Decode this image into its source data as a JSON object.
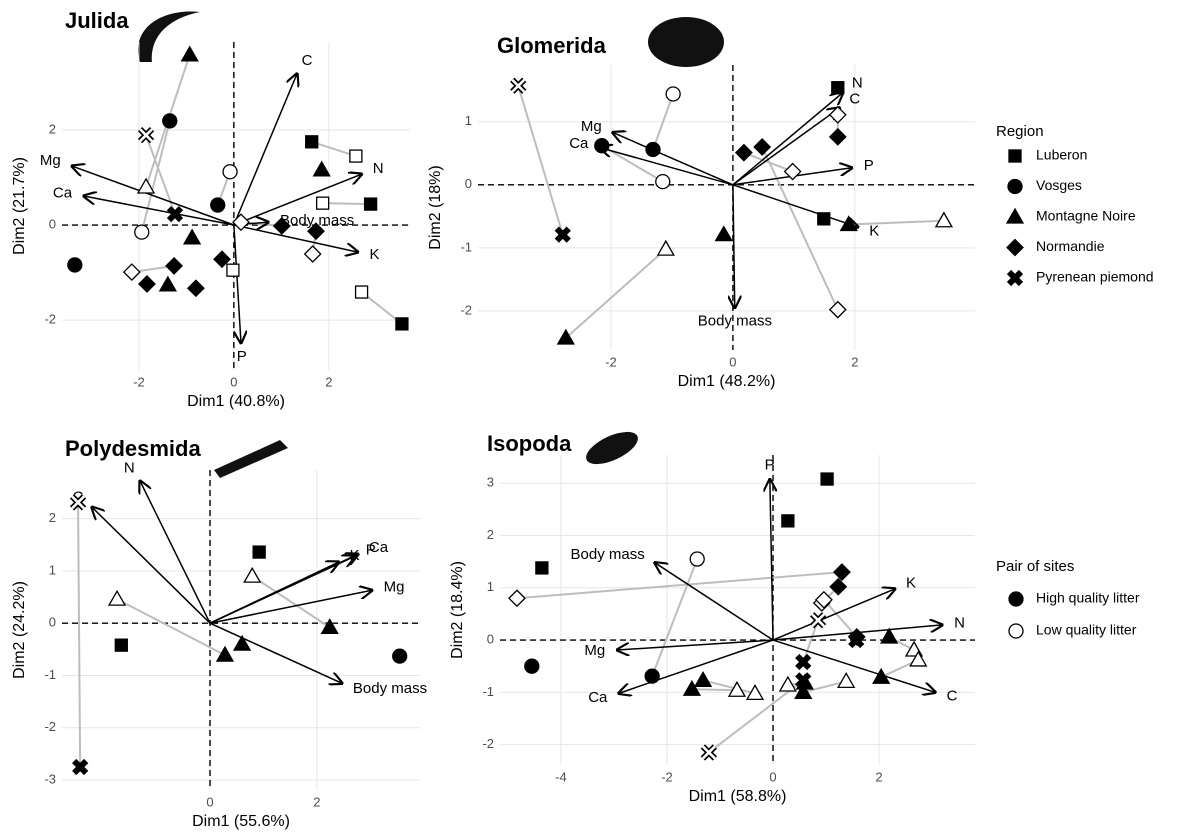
{
  "legend": {
    "region_title": "Region",
    "regions": [
      {
        "name": "Luberon",
        "marker": "square"
      },
      {
        "name": "Vosges",
        "marker": "circle"
      },
      {
        "name": "Montagne Noire",
        "marker": "triangle"
      },
      {
        "name": "Normandie",
        "marker": "diamond"
      },
      {
        "name": "Pyrenean piemond",
        "marker": "cross"
      }
    ],
    "pair_title": "Pair of sites",
    "pairs": [
      {
        "name": "High quality litter",
        "filled": true
      },
      {
        "name": "Low quality litter",
        "filled": false
      }
    ]
  },
  "chart_data": [
    {
      "type": "biplot",
      "title": "Julida",
      "xlabel": "Dim1 (40.8%)",
      "ylabel": "Dim2 (21.7%)",
      "grid": true,
      "xlim": [
        -3.62,
        3.71
      ],
      "ylim": [
        -3.05,
        3.85
      ],
      "xticks": [
        -2,
        0,
        2
      ],
      "yticks": [
        -2,
        0,
        2
      ],
      "series": [
        {
          "high": {
            "x": [
              1.64,
              2.88,
              3.54
            ],
            "y": [
              1.75,
              0.44,
              -2.08
            ]
          },
          "low": {
            "x": [
              2.57,
              1.87,
              2.69,
              -0.02
            ],
            "y": [
              1.45,
              0.46,
              -1.41,
              -0.95
            ]
          }
        },
        {
          "high": {
            "x": [
              -1.35,
              -0.34,
              -3.35
            ],
            "y": [
              2.19,
              0.42,
              -0.84
            ]
          },
          "low": {
            "x": [
              -1.94,
              -0.08
            ],
            "y": [
              -0.15,
              1.12
            ]
          }
        },
        {
          "high": {
            "x": [
              -0.93,
              1.85,
              -0.88,
              -1.39
            ],
            "y": [
              3.58,
              1.16,
              -0.27,
              -1.26
            ]
          },
          "low": {
            "x": [
              -1.85
            ],
            "y": [
              0.8
            ]
          }
        },
        {
          "high": {
            "x": [
              1.01,
              1.73,
              -1.26,
              -1.83,
              -0.8,
              -0.25
            ],
            "y": [
              -0.02,
              -0.13,
              -0.86,
              -1.24,
              -1.33,
              -0.72
            ]
          },
          "low": {
            "x": [
              0.15,
              1.66,
              -2.15
            ],
            "y": [
              0.06,
              -0.61,
              -0.99
            ]
          }
        },
        {
          "high": {
            "x": [
              -1.24
            ],
            "y": [
              0.23
            ]
          },
          "low": {
            "x": [
              -1.85
            ],
            "y": [
              1.89
            ]
          }
        }
      ],
      "arrows": [
        {
          "label": "C",
          "x": 1.33,
          "y": 3.18
        },
        {
          "label": "N",
          "x": 2.69,
          "y": 1.07
        },
        {
          "label": "Mg",
          "x": -3.41,
          "y": 1.24
        },
        {
          "label": "Ca",
          "x": -3.16,
          "y": 0.61
        },
        {
          "label": "K",
          "x": 2.61,
          "y": -0.57
        },
        {
          "label": "P",
          "x": 0.15,
          "y": -2.48
        },
        {
          "label": "Body mass",
          "x": 0.72,
          "y": 0.06
        }
      ]
    },
    {
      "type": "biplot",
      "title": "Glomerida",
      "xlabel": "Dim1 (48.2%)",
      "ylabel": "Dim2 (18%)",
      "grid": true,
      "xlim": [
        -4.18,
        3.97
      ],
      "ylim": [
        -2.62,
        1.9
      ],
      "xticks": [
        -2,
        0,
        2
      ],
      "yticks": [
        -2,
        -1,
        0,
        1
      ],
      "series": [
        {
          "high": {
            "x": [
              1.72,
              1.49
            ],
            "y": [
              1.54,
              -0.54
            ]
          },
          "low": {
            "x": [],
            "y": []
          }
        },
        {
          "high": {
            "x": [
              -1.31,
              -2.15
            ],
            "y": [
              0.56,
              0.62
            ]
          },
          "low": {
            "x": [
              -0.98,
              -1.15
            ],
            "y": [
              1.44,
              0.05
            ]
          }
        },
        {
          "high": {
            "x": [
              -2.74,
              1.9,
              -0.15
            ],
            "y": [
              -2.43,
              -0.63,
              -0.79
            ]
          },
          "low": {
            "x": [
              -1.1,
              3.46
            ],
            "y": [
              -1.02,
              -0.57
            ]
          }
        },
        {
          "high": {
            "x": [
              1.72,
              0.18,
              0.48
            ],
            "y": [
              0.76,
              0.51,
              0.6
            ]
          },
          "low": {
            "x": [
              1.72,
              0.98,
              1.72
            ],
            "y": [
              1.11,
              0.21,
              -1.98
            ]
          }
        },
        {
          "high": {
            "x": [
              -2.79
            ],
            "y": [
              -0.79
            ]
          },
          "low": {
            "x": [
              -3.52
            ],
            "y": [
              1.57
            ]
          }
        }
      ],
      "arrows": [
        {
          "label": "N",
          "x": 1.8,
          "y": 1.46
        },
        {
          "label": "C",
          "x": 1.75,
          "y": 1.22
        },
        {
          "label": "P",
          "x": 1.95,
          "y": 0.27
        },
        {
          "label": "K",
          "x": 2.05,
          "y": -0.67
        },
        {
          "label": "Mg",
          "x": -1.97,
          "y": 0.83
        },
        {
          "label": "Ca",
          "x": -2.18,
          "y": 0.59
        },
        {
          "label": "Body mass",
          "x": 0.03,
          "y": -1.95
        }
      ]
    },
    {
      "type": "biplot",
      "title": "Polydesmida",
      "xlabel": "Dim1 (55.6%)",
      "ylabel": "Dim2 (24.2%)",
      "grid": true,
      "xlim": [
        -2.77,
        3.93
      ],
      "ylim": [
        -3.19,
        2.93
      ],
      "xticks": [
        0,
        2
      ],
      "yticks": [
        -3,
        -2,
        -1,
        0,
        1,
        2
      ],
      "series": [
        {
          "high": {
            "x": [
              0.92,
              -1.66
            ],
            "y": [
              1.36,
              -0.42
            ]
          },
          "low": {
            "x": [],
            "y": []
          }
        },
        {
          "high": {
            "x": [
              3.55
            ],
            "y": [
              -0.63
            ]
          },
          "low": {
            "x": [],
            "y": []
          }
        },
        {
          "high": {
            "x": [
              2.24,
              0.28,
              0.6
            ],
            "y": [
              -0.08,
              -0.61,
              -0.4
            ]
          },
          "low": {
            "x": [
              0.79,
              -1.74
            ],
            "y": [
              0.9,
              0.46
            ]
          }
        },
        {
          "high": {
            "x": [],
            "y": []
          },
          "low": {
            "x": [],
            "y": []
          }
        },
        {
          "high": {
            "x": [
              -2.43
            ],
            "y": [
              -2.75
            ]
          },
          "low": {
            "x": [
              -2.47
            ],
            "y": [
              2.31
            ]
          }
        }
      ],
      "arrows": [
        {
          "label": "N",
          "x": -1.31,
          "y": 2.72
        },
        {
          "label": "C",
          "x": -2.21,
          "y": 2.22
        },
        {
          "label": "K",
          "x": 2.41,
          "y": 1.17
        },
        {
          "label": "P",
          "x": 2.71,
          "y": 1.28
        },
        {
          "label": "Ca",
          "x": 2.77,
          "y": 1.32
        },
        {
          "label": "Mg",
          "x": 3.03,
          "y": 0.63
        },
        {
          "label": "Body mass",
          "x": 2.47,
          "y": -1.15
        }
      ]
    },
    {
      "type": "biplot",
      "title": "Isopoda",
      "xlabel": "Dim1 (58.8%)",
      "ylabel": "Dim2 (18.4%)",
      "grid": true,
      "xlim": [
        -5.15,
        3.81
      ],
      "ylim": [
        -2.39,
        3.54
      ],
      "xticks": [
        -4,
        -2,
        0,
        2
      ],
      "yticks": [
        -2,
        -1,
        0,
        1,
        2,
        3
      ],
      "series": [
        {
          "high": {
            "x": [
              1.02,
              0.28,
              -4.36
            ],
            "y": [
              3.08,
              2.28,
              1.38
            ]
          },
          "low": {
            "x": [],
            "y": []
          }
        },
        {
          "high": {
            "x": [
              -2.28,
              -4.55
            ],
            "y": [
              -0.69,
              -0.5
            ]
          },
          "low": {
            "x": [
              -1.43
            ],
            "y": [
              1.55
            ]
          }
        },
        {
          "high": {
            "x": [
              -1.53,
              -1.32,
              2.19,
              2.04,
              0.57,
              0.6
            ],
            "y": [
              -0.94,
              -0.77,
              0.06,
              -0.71,
              -1.0,
              -0.82
            ]
          },
          "low": {
            "x": [
              -0.68,
              -0.34,
              2.66,
              2.74,
              1.38,
              0.28
            ],
            "y": [
              -0.96,
              -1.02,
              -0.19,
              -0.38,
              -0.79,
              -0.86
            ]
          }
        },
        {
          "high": {
            "x": [
              1.23,
              1.3,
              1.58
            ],
            "y": [
              1.02,
              1.3,
              0.06
            ]
          },
          "low": {
            "x": [
              0.92,
              -4.83,
              0.96
            ],
            "y": [
              0.71,
              0.8,
              0.77
            ]
          }
        },
        {
          "high": {
            "x": [
              0.57,
              0.57,
              1.57
            ],
            "y": [
              -0.42,
              -0.77,
              0.0
            ]
          },
          "low": {
            "x": [
              0.85,
              -1.21
            ],
            "y": [
              0.38,
              -2.15
            ]
          }
        }
      ],
      "arrows": [
        {
          "label": "P",
          "x": -0.06,
          "y": 3.07
        },
        {
          "label": "Body mass",
          "x": -2.23,
          "y": 1.48
        },
        {
          "label": "K",
          "x": 2.3,
          "y": 0.98
        },
        {
          "label": "N",
          "x": 3.19,
          "y": 0.29
        },
        {
          "label": "Mg",
          "x": -2.94,
          "y": -0.19
        },
        {
          "label": "Ca",
          "x": -2.91,
          "y": -1.02
        },
        {
          "label": "C",
          "x": 3.06,
          "y": -1.0
        }
      ]
    }
  ]
}
